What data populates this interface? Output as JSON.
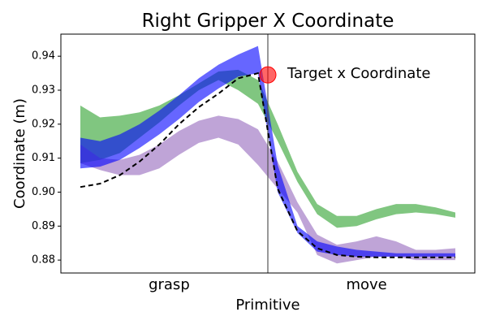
{
  "chart_data": {
    "type": "area",
    "title": "Right Gripper X Coordinate",
    "xlabel": "Primitive",
    "ylabel": "Coordinate (m)",
    "categories": [
      "grasp",
      "move"
    ],
    "x_points_per_primitive": 10,
    "boundary_x": 9.5,
    "ylim": [
      0.8762,
      0.9465
    ],
    "yticks": [
      0.88,
      0.89,
      0.9,
      0.91,
      0.92,
      0.93,
      0.94
    ],
    "ytick_labels": [
      "0.88",
      "0.89",
      "0.90",
      "0.91",
      "0.92",
      "0.93",
      "0.94"
    ],
    "grid": false,
    "x": [
      0,
      1,
      2,
      3,
      4,
      5,
      6,
      7,
      8,
      9,
      10,
      11,
      12,
      13,
      14,
      15,
      16,
      17,
      18,
      19
    ],
    "series": [
      {
        "color": "#2ca02c",
        "lower": [
          0.9085,
          0.9095,
          0.9115,
          0.916,
          0.9205,
          0.9255,
          0.93,
          0.933,
          0.93,
          0.926,
          0.915,
          0.903,
          0.8935,
          0.8895,
          0.89,
          0.892,
          0.8935,
          0.894,
          0.8935,
          0.8925
        ],
        "upper": [
          0.9255,
          0.922,
          0.9225,
          0.9235,
          0.9255,
          0.9285,
          0.932,
          0.9355,
          0.936,
          0.933,
          0.92,
          0.906,
          0.8965,
          0.893,
          0.893,
          0.895,
          0.8965,
          0.8965,
          0.8955,
          0.894
        ]
      },
      {
        "color": "#9467bd",
        "lower": [
          0.9085,
          0.9065,
          0.905,
          0.905,
          0.907,
          0.911,
          0.9145,
          0.916,
          0.914,
          0.908,
          0.901,
          0.894,
          0.8815,
          0.879,
          0.88,
          0.881,
          0.881,
          0.88,
          0.88,
          0.88
        ],
        "upper": [
          0.914,
          0.91,
          0.9095,
          0.911,
          0.914,
          0.918,
          0.921,
          0.9225,
          0.9215,
          0.9185,
          0.909,
          0.897,
          0.8875,
          0.8845,
          0.8855,
          0.887,
          0.8855,
          0.883,
          0.883,
          0.8835
        ]
      },
      {
        "color": "#0000ff",
        "lower": [
          0.907,
          0.9075,
          0.9095,
          0.913,
          0.917,
          0.9215,
          0.9265,
          0.9305,
          0.934,
          0.935,
          0.9,
          0.888,
          0.8825,
          0.8815,
          0.881,
          0.881,
          0.881,
          0.881,
          0.881,
          0.881
        ],
        "upper": [
          0.916,
          0.915,
          0.917,
          0.92,
          0.924,
          0.9285,
          0.9335,
          0.9375,
          0.9405,
          0.943,
          0.908,
          0.89,
          0.8855,
          0.884,
          0.883,
          0.8825,
          0.882,
          0.882,
          0.882,
          0.882
        ]
      }
    ],
    "target_line": {
      "color": "#000000",
      "style": "dashed",
      "y": [
        0.9015,
        0.9025,
        0.905,
        0.909,
        0.914,
        0.92,
        0.925,
        0.929,
        0.9335,
        0.935,
        0.901,
        0.8885,
        0.8835,
        0.8815,
        0.881,
        0.8808,
        0.8808,
        0.8808,
        0.8808,
        0.8808
      ]
    },
    "target_point": {
      "x": 9.5,
      "y": 0.9345,
      "color": "#ff0000",
      "label": "Target x Coordinate"
    }
  }
}
